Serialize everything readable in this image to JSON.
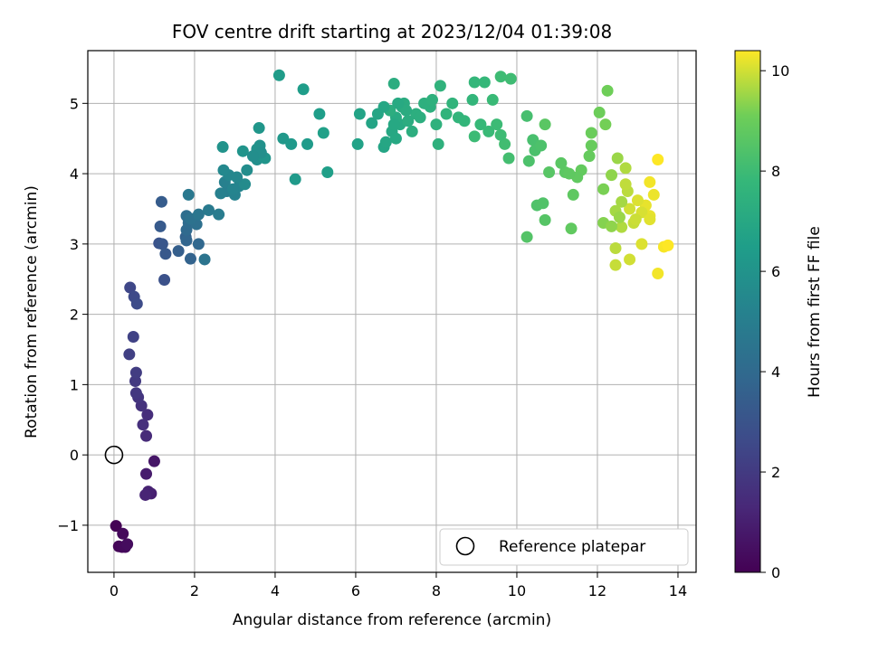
{
  "chart_data": {
    "type": "scatter",
    "title": "FOV centre drift starting at 2023/12/04 01:39:08",
    "xlabel": "Angular distance from reference (arcmin)",
    "ylabel": "Rotation from reference (arcmin)",
    "xlim": [
      -0.65,
      14.45
    ],
    "ylim": [
      -1.67,
      5.75
    ],
    "xticks": [
      0,
      2,
      4,
      6,
      8,
      10,
      12,
      14
    ],
    "yticks": [
      -1,
      0,
      1,
      2,
      3,
      4,
      5
    ],
    "grid": true,
    "colorbar": {
      "label": "Hours from first FF file",
      "range": [
        0,
        10.4
      ],
      "ticks": [
        0,
        2,
        4,
        6,
        8,
        10
      ],
      "colormap": "viridis"
    },
    "reference": {
      "x": 0,
      "y": 0,
      "label": "Reference platepar"
    },
    "legend": {
      "location": "lower right"
    },
    "points": [
      [
        0.05,
        -1.01,
        0.05
      ],
      [
        0.12,
        -1.3,
        0.12
      ],
      [
        0.2,
        -1.31,
        0.2
      ],
      [
        0.22,
        -1.12,
        0.25
      ],
      [
        0.28,
        -1.31,
        0.3
      ],
      [
        0.33,
        -1.27,
        0.35
      ],
      [
        1.0,
        -0.09,
        0.7
      ],
      [
        0.8,
        -0.27,
        0.9
      ],
      [
        0.92,
        -0.55,
        1.0
      ],
      [
        0.85,
        -0.52,
        1.1
      ],
      [
        0.78,
        -0.57,
        1.2
      ],
      [
        0.8,
        0.27,
        1.4
      ],
      [
        0.83,
        0.57,
        1.5
      ],
      [
        0.72,
        0.43,
        1.6
      ],
      [
        0.68,
        0.7,
        1.7
      ],
      [
        0.6,
        0.82,
        1.8
      ],
      [
        0.55,
        0.88,
        1.9
      ],
      [
        0.53,
        1.05,
        2.0
      ],
      [
        0.55,
        1.17,
        2.1
      ],
      [
        0.38,
        1.43,
        2.2
      ],
      [
        0.48,
        1.68,
        2.3
      ],
      [
        0.4,
        2.38,
        2.5
      ],
      [
        0.5,
        2.25,
        2.6
      ],
      [
        0.57,
        2.15,
        2.7
      ],
      [
        1.25,
        2.49,
        2.9
      ],
      [
        1.12,
        3.01,
        3.0
      ],
      [
        1.2,
        3.0,
        3.1
      ],
      [
        1.28,
        2.86,
        3.2
      ],
      [
        1.15,
        3.25,
        3.3
      ],
      [
        1.18,
        3.6,
        3.4
      ],
      [
        1.6,
        2.9,
        3.5
      ],
      [
        1.78,
        3.1,
        3.6
      ],
      [
        1.9,
        2.79,
        3.7
      ],
      [
        1.8,
        3.05,
        3.8
      ],
      [
        2.1,
        3.0,
        3.9
      ],
      [
        1.8,
        3.2,
        4.0
      ],
      [
        1.85,
        3.3,
        4.1
      ],
      [
        1.8,
        3.4,
        4.2
      ],
      [
        2.05,
        3.28,
        4.3
      ],
      [
        1.9,
        3.36,
        4.4
      ],
      [
        2.25,
        2.78,
        4.5
      ],
      [
        2.1,
        3.42,
        4.6
      ],
      [
        1.85,
        3.7,
        4.7
      ],
      [
        2.35,
        3.48,
        4.8
      ],
      [
        2.6,
        3.42,
        4.9
      ],
      [
        2.8,
        3.75,
        5.0
      ],
      [
        2.75,
        3.88,
        5.1
      ],
      [
        3.0,
        3.7,
        5.2
      ],
      [
        3.1,
        3.82,
        5.3
      ],
      [
        2.85,
        3.98,
        5.4
      ],
      [
        2.72,
        4.05,
        5.5
      ],
      [
        3.25,
        3.85,
        5.6
      ],
      [
        3.3,
        4.05,
        5.7
      ],
      [
        3.55,
        4.2,
        5.8
      ],
      [
        3.62,
        4.4,
        5.9
      ],
      [
        3.55,
        4.35,
        5.95
      ],
      [
        2.7,
        4.38,
        6.0
      ],
      [
        3.2,
        4.32,
        6.05
      ],
      [
        3.75,
        4.22,
        6.1
      ],
      [
        3.6,
        4.65,
        6.15
      ],
      [
        4.2,
        4.5,
        6.2
      ],
      [
        4.4,
        4.42,
        6.25
      ],
      [
        4.5,
        3.92,
        6.3
      ],
      [
        4.8,
        4.42,
        6.35
      ],
      [
        4.1,
        5.4,
        6.4
      ],
      [
        4.7,
        5.2,
        6.45
      ],
      [
        5.1,
        4.85,
        6.5
      ],
      [
        5.3,
        4.02,
        6.55
      ],
      [
        5.2,
        4.58,
        6.6
      ],
      [
        6.05,
        4.42,
        6.7
      ],
      [
        6.1,
        4.85,
        6.75
      ],
      [
        6.4,
        4.72,
        6.8
      ],
      [
        6.7,
        4.38,
        6.85
      ],
      [
        6.75,
        4.45,
        6.9
      ],
      [
        6.9,
        4.6,
        6.95
      ],
      [
        7.0,
        4.5,
        7.0
      ],
      [
        7.1,
        4.7,
        7.05
      ],
      [
        7.0,
        4.8,
        7.1
      ],
      [
        7.15,
        4.95,
        7.15
      ],
      [
        7.2,
        5.0,
        7.2
      ],
      [
        6.95,
        5.28,
        7.25
      ],
      [
        7.4,
        4.6,
        7.3
      ],
      [
        7.5,
        4.85,
        7.35
      ],
      [
        7.85,
        4.95,
        7.4
      ],
      [
        8.05,
        4.42,
        7.45
      ],
      [
        8.0,
        4.7,
        7.5
      ],
      [
        8.1,
        5.25,
        7.55
      ],
      [
        8.25,
        4.85,
        7.6
      ],
      [
        8.55,
        4.8,
        7.65
      ],
      [
        8.7,
        4.75,
        7.7
      ],
      [
        8.95,
        5.3,
        7.75
      ],
      [
        9.2,
        5.3,
        7.8
      ],
      [
        9.1,
        4.7,
        7.85
      ],
      [
        9.3,
        4.6,
        7.9
      ],
      [
        8.95,
        4.53,
        7.95
      ],
      [
        9.6,
        5.38,
        8.0
      ],
      [
        9.85,
        5.35,
        8.05
      ],
      [
        9.7,
        4.42,
        8.1
      ],
      [
        9.8,
        4.22,
        8.15
      ],
      [
        10.25,
        4.82,
        8.2
      ],
      [
        10.4,
        4.48,
        8.25
      ],
      [
        10.45,
        4.33,
        8.3
      ],
      [
        10.3,
        4.18,
        8.35
      ],
      [
        10.5,
        3.55,
        8.4
      ],
      [
        10.65,
        3.58,
        8.45
      ],
      [
        10.25,
        3.1,
        8.5
      ],
      [
        10.7,
        3.34,
        8.55
      ],
      [
        10.8,
        4.02,
        8.6
      ],
      [
        10.7,
        4.7,
        8.65
      ],
      [
        11.2,
        4.02,
        8.7
      ],
      [
        11.4,
        3.7,
        8.75
      ],
      [
        11.35,
        3.22,
        8.8
      ],
      [
        11.6,
        4.05,
        8.85
      ],
      [
        11.8,
        4.25,
        8.9
      ],
      [
        11.85,
        4.4,
        8.95
      ],
      [
        11.85,
        4.58,
        9.0
      ],
      [
        12.05,
        4.87,
        9.05
      ],
      [
        12.25,
        5.18,
        9.1
      ],
      [
        12.2,
        4.7,
        9.15
      ],
      [
        12.15,
        3.78,
        9.2
      ],
      [
        12.15,
        3.3,
        9.3
      ],
      [
        12.35,
        3.98,
        9.4
      ],
      [
        12.5,
        4.22,
        9.5
      ],
      [
        12.45,
        3.47,
        9.6
      ],
      [
        12.6,
        3.24,
        9.7
      ],
      [
        12.45,
        2.94,
        9.8
      ],
      [
        12.45,
        2.7,
        9.9
      ],
      [
        12.8,
        2.78,
        10.0
      ],
      [
        13.1,
        3.0,
        10.1
      ],
      [
        13.3,
        3.4,
        10.2
      ],
      [
        13.5,
        2.58,
        10.3
      ],
      [
        13.65,
        2.96,
        10.35
      ],
      [
        13.75,
        2.98,
        10.4
      ],
      [
        13.5,
        4.2,
        10.4
      ],
      [
        13.3,
        3.88,
        10.3
      ],
      [
        13.2,
        3.55,
        10.2
      ],
      [
        13.0,
        3.62,
        10.1
      ],
      [
        12.8,
        3.5,
        10.0
      ],
      [
        12.9,
        3.3,
        9.9
      ],
      [
        12.75,
        3.75,
        9.8
      ],
      [
        12.7,
        4.08,
        9.7
      ],
      [
        12.6,
        3.6,
        9.6
      ],
      [
        12.55,
        3.38,
        9.5
      ],
      [
        12.35,
        3.25,
        9.4
      ],
      [
        7.25,
        4.9,
        7.2
      ],
      [
        7.3,
        4.75,
        7.25
      ],
      [
        6.85,
        4.9,
        7.3
      ],
      [
        7.6,
        4.8,
        7.35
      ],
      [
        7.7,
        5.0,
        7.4
      ],
      [
        7.9,
        5.05,
        7.45
      ],
      [
        6.7,
        4.95,
        6.9
      ],
      [
        6.55,
        4.85,
        6.85
      ],
      [
        6.95,
        4.7,
        7.0
      ],
      [
        7.05,
        5.0,
        7.05
      ],
      [
        9.4,
        5.05,
        7.9
      ],
      [
        9.5,
        4.7,
        7.95
      ],
      [
        9.6,
        4.55,
        8.0
      ],
      [
        8.4,
        5.0,
        7.6
      ],
      [
        8.9,
        5.05,
        7.7
      ],
      [
        3.65,
        4.3,
        5.8
      ],
      [
        3.45,
        4.25,
        5.75
      ],
      [
        3.05,
        3.95,
        5.45
      ],
      [
        2.95,
        3.78,
        5.3
      ],
      [
        2.65,
        3.72,
        5.1
      ],
      [
        10.6,
        4.4,
        8.35
      ],
      [
        11.1,
        4.15,
        8.65
      ],
      [
        11.5,
        3.95,
        8.8
      ],
      [
        11.3,
        4.0,
        8.75
      ],
      [
        12.7,
        3.85,
        9.85
      ],
      [
        13.4,
        3.7,
        10.25
      ],
      [
        13.1,
        3.45,
        10.05
      ],
      [
        12.95,
        3.35,
        9.95
      ],
      [
        13.3,
        3.35,
        10.15
      ]
    ]
  }
}
